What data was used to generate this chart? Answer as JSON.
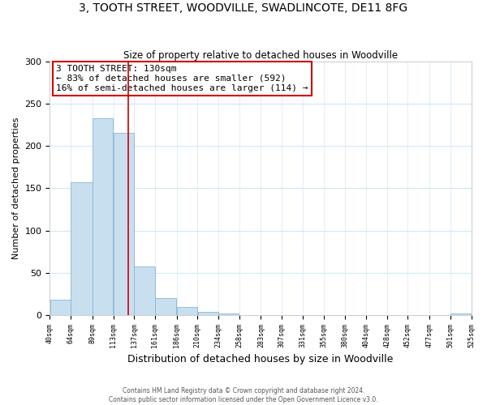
{
  "title": "3, TOOTH STREET, WOODVILLE, SWADLINCOTE, DE11 8FG",
  "subtitle": "Size of property relative to detached houses in Woodville",
  "xlabel": "Distribution of detached houses by size in Woodville",
  "ylabel": "Number of detached properties",
  "bar_edges": [
    40,
    64,
    89,
    113,
    137,
    161,
    186,
    210,
    234,
    258,
    283,
    307,
    331,
    355,
    380,
    404,
    428,
    452,
    477,
    501,
    525
  ],
  "bar_heights": [
    18,
    157,
    233,
    215,
    57,
    20,
    10,
    4,
    2,
    0,
    0,
    0,
    0,
    0,
    0,
    0,
    0,
    0,
    0,
    2
  ],
  "bar_color": "#c8dff0",
  "bar_edge_color": "#8ab4d4",
  "vline_x": 130,
  "vline_color": "#cc0000",
  "annotation_title": "3 TOOTH STREET: 130sqm",
  "annotation_line1": "← 83% of detached houses are smaller (592)",
  "annotation_line2": "16% of semi-detached houses are larger (114) →",
  "annotation_box_facecolor": "#ffffff",
  "annotation_box_edgecolor": "#cc0000",
  "ylim": [
    0,
    300
  ],
  "yticks": [
    0,
    50,
    100,
    150,
    200,
    250,
    300
  ],
  "tick_labels": [
    "40sqm",
    "64sqm",
    "89sqm",
    "113sqm",
    "137sqm",
    "161sqm",
    "186sqm",
    "210sqm",
    "234sqm",
    "258sqm",
    "283sqm",
    "307sqm",
    "331sqm",
    "355sqm",
    "380sqm",
    "404sqm",
    "428sqm",
    "452sqm",
    "477sqm",
    "501sqm",
    "525sqm"
  ],
  "footnote1": "Contains HM Land Registry data © Crown copyright and database right 2024.",
  "footnote2": "Contains public sector information licensed under the Open Government Licence v3.0."
}
